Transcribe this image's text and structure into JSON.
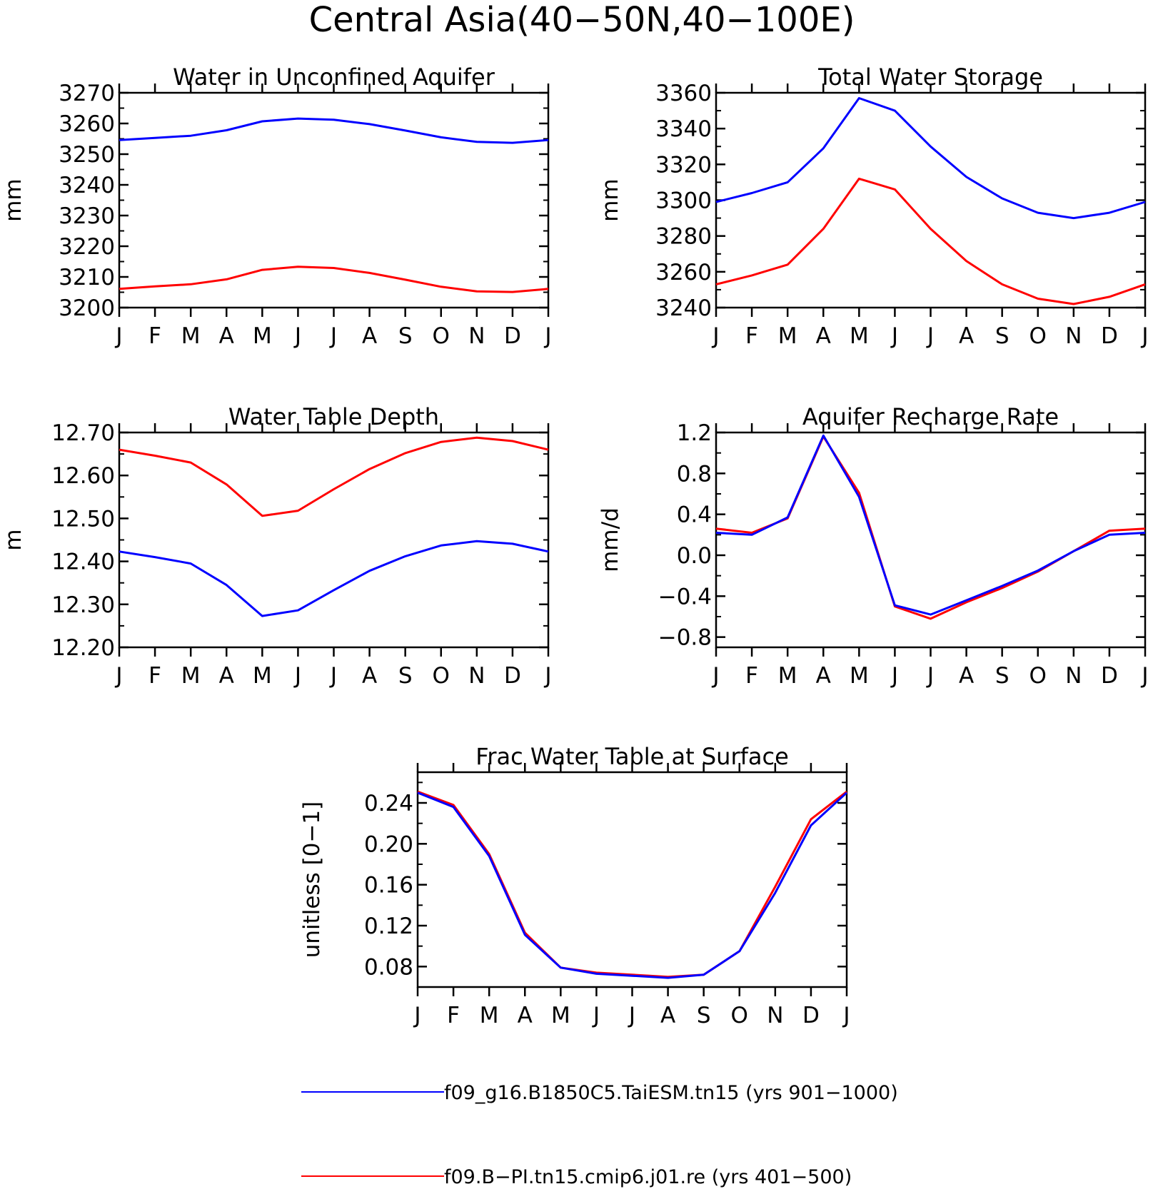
{
  "figure": {
    "title": "Central Asia(40−50N,40−100E)"
  },
  "colors": {
    "run1": "#0000ff",
    "run2": "#ff0000",
    "axis": "#000000"
  },
  "months": [
    "J",
    "F",
    "M",
    "A",
    "M",
    "J",
    "J",
    "A",
    "S",
    "O",
    "N",
    "D",
    "J"
  ],
  "legend": [
    {
      "label": "f09_g16.B1850C5.TaiESM.tn15 (yrs 901−1000)",
      "color": "#0000ff"
    },
    {
      "label": "f09.B−PI.tn15.cmip6.j01.re (yrs 401−500)",
      "color": "#ff0000"
    }
  ],
  "chart_data": [
    {
      "type": "line",
      "title": "Water in Unconfined Aquifer",
      "ylabel": "mm",
      "ylim": [
        3200,
        3270
      ],
      "yticks": [
        3200,
        3210,
        3220,
        3230,
        3240,
        3250,
        3260,
        3270
      ],
      "ytick_labels": [
        "3200",
        "3210",
        "3220",
        "3230",
        "3240",
        "3250",
        "3260",
        "3270"
      ],
      "series": [
        {
          "color": "#0000ff",
          "values": [
            3254.6,
            3255.3,
            3256.0,
            3257.8,
            3260.7,
            3261.6,
            3261.2,
            3259.8,
            3257.7,
            3255.5,
            3254.0,
            3253.7,
            3254.6
          ]
        },
        {
          "color": "#ff0000",
          "values": [
            3206.1,
            3206.9,
            3207.6,
            3209.2,
            3212.3,
            3213.3,
            3212.9,
            3211.3,
            3209.1,
            3206.8,
            3205.3,
            3205.1,
            3206.1
          ]
        }
      ]
    },
    {
      "type": "line",
      "title": "Total Water Storage",
      "ylabel": "mm",
      "ylim": [
        3240,
        3360
      ],
      "yticks": [
        3240,
        3260,
        3280,
        3300,
        3320,
        3340,
        3360
      ],
      "ytick_labels": [
        "3240",
        "3260",
        "3280",
        "3300",
        "3320",
        "3340",
        "3360"
      ],
      "series": [
        {
          "color": "#0000ff",
          "values": [
            3299,
            3304,
            3310,
            3329,
            3357,
            3350,
            3330,
            3313,
            3301,
            3293,
            3290,
            3293,
            3299
          ]
        },
        {
          "color": "#ff0000",
          "values": [
            3253,
            3258,
            3264,
            3284,
            3312,
            3306,
            3284,
            3266,
            3253,
            3245,
            3242,
            3246,
            3253
          ]
        }
      ]
    },
    {
      "type": "line",
      "title": "Water Table Depth",
      "ylabel": "m",
      "ylim": [
        12.2,
        12.7
      ],
      "yticks": [
        12.2,
        12.3,
        12.4,
        12.5,
        12.6,
        12.7
      ],
      "ytick_labels": [
        "12.20",
        "12.30",
        "12.40",
        "12.50",
        "12.60",
        "12.70"
      ],
      "series": [
        {
          "color": "#0000ff",
          "values": [
            12.423,
            12.41,
            12.395,
            12.345,
            12.273,
            12.286,
            12.333,
            12.378,
            12.412,
            12.437,
            12.447,
            12.441,
            12.423
          ]
        },
        {
          "color": "#ff0000",
          "values": [
            12.66,
            12.646,
            12.63,
            12.579,
            12.506,
            12.518,
            12.568,
            12.615,
            12.652,
            12.678,
            12.688,
            12.68,
            12.66
          ]
        }
      ]
    },
    {
      "type": "line",
      "title": "Aquifer Recharge Rate",
      "ylabel": "mm/d",
      "ylim": [
        -0.9,
        1.2
      ],
      "yticks": [
        -0.8,
        -0.4,
        0.0,
        0.4,
        0.8,
        1.2
      ],
      "ytick_labels": [
        "−0.8",
        "−0.4",
        "0.0",
        "0.4",
        "0.8",
        "1.2"
      ],
      "series": [
        {
          "color": "#ff0000",
          "values": [
            0.26,
            0.22,
            0.36,
            1.16,
            0.61,
            -0.5,
            -0.62,
            -0.46,
            -0.32,
            -0.16,
            0.04,
            0.24,
            0.26
          ]
        },
        {
          "color": "#0000ff",
          "values": [
            0.22,
            0.2,
            0.37,
            1.17,
            0.57,
            -0.49,
            -0.58,
            -0.44,
            -0.3,
            -0.15,
            0.04,
            0.2,
            0.22
          ]
        }
      ]
    },
    {
      "type": "line",
      "title": "Frac Water Table at Surface",
      "ylabel": "unitless [0−1]",
      "ylim": [
        0.06,
        0.27
      ],
      "yticks": [
        0.08,
        0.12,
        0.16,
        0.2,
        0.24
      ],
      "ytick_labels": [
        "0.08",
        "0.12",
        "0.16",
        "0.20",
        "0.24"
      ],
      "series": [
        {
          "color": "#ff0000",
          "values": [
            0.251,
            0.238,
            0.19,
            0.113,
            0.079,
            0.074,
            0.072,
            0.07,
            0.072,
            0.095,
            0.158,
            0.224,
            0.251
          ]
        },
        {
          "color": "#0000ff",
          "values": [
            0.25,
            0.236,
            0.188,
            0.111,
            0.079,
            0.073,
            0.071,
            0.069,
            0.072,
            0.095,
            0.152,
            0.218,
            0.25
          ]
        }
      ]
    }
  ]
}
